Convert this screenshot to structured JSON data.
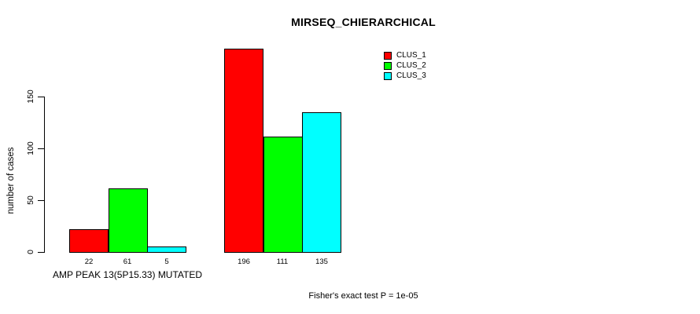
{
  "chart_data": {
    "type": "bar",
    "title": "MIRSEQ_CHIERARCHICAL",
    "ylabel": "number of cases",
    "xlabel": "AMP PEAK 13(5P15.33) MUTATED",
    "annotation": "Fisher's exact test P = 1e-05",
    "yticks": [
      0,
      50,
      100,
      150
    ],
    "ylim": [
      0,
      200
    ],
    "grid": false,
    "legend_position": "top-right",
    "categories": [
      "AMP PEAK 13(5P15.33) MUTATED",
      ""
    ],
    "series": [
      {
        "name": "CLUS_1",
        "color": "#ff0000",
        "values": [
          22,
          196
        ]
      },
      {
        "name": "CLUS_2",
        "color": "#00ff00",
        "values": [
          61,
          111
        ]
      },
      {
        "name": "CLUS_3",
        "color": "#00ffff",
        "values": [
          5,
          135
        ]
      }
    ],
    "bar_value_labels": [
      [
        22,
        61,
        5
      ],
      [
        196,
        111,
        135
      ]
    ],
    "colors": {
      "clus_1": "#ff0000",
      "clus_2": "#00ff00",
      "clus_3": "#00ffff",
      "axis": "#000000",
      "background": "#ffffff"
    }
  }
}
